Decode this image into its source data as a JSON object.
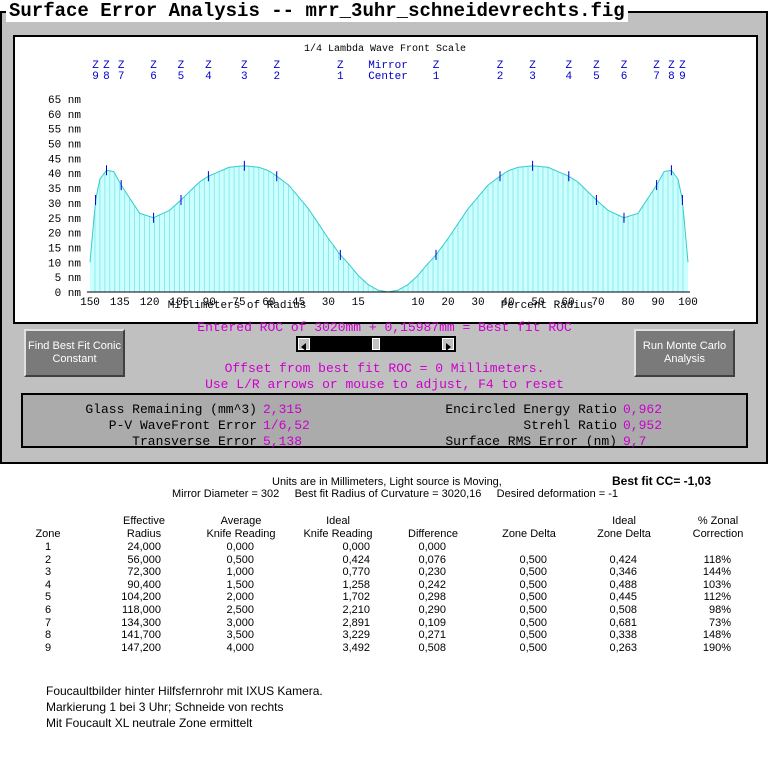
{
  "window": {
    "title": "Surface Error Analysis -- mrr_3uhr_schneidevrechts.fig"
  },
  "chart": {
    "title": "1/4 Lambda Wave Front Scale",
    "y_ticks": [
      "65 nm",
      "60 nm",
      "55 nm",
      "50 nm",
      "45 nm",
      "40 nm",
      "35 nm",
      "30 nm",
      "25 nm",
      "20 nm",
      "15 nm",
      "10 nm",
      "5 nm",
      "0 nm"
    ],
    "left_ticks": [
      "150",
      "135",
      "120",
      "105",
      "90",
      "75",
      "60",
      "45",
      "30",
      "15"
    ],
    "right_ticks": [
      "10",
      "20",
      "30",
      "40",
      "50",
      "60",
      "70",
      "80",
      "90",
      "100"
    ],
    "left_axis_label": "Millimeters of Radius",
    "right_axis_label": "Percent Radius",
    "mirror_center_line1": "Mirror",
    "mirror_center_line2": "Center",
    "zone_markers_left": [
      {
        "top": "Z",
        "bottom": "9"
      },
      {
        "top": "Z",
        "bottom": "8"
      },
      {
        "top": "Z",
        "bottom": "7"
      },
      {
        "top": "Z",
        "bottom": "6"
      },
      {
        "top": "Z",
        "bottom": "5"
      },
      {
        "top": "Z",
        "bottom": "4"
      },
      {
        "top": "Z",
        "bottom": "3"
      },
      {
        "top": "Z",
        "bottom": "2"
      },
      {
        "top": "Z",
        "bottom": "1"
      }
    ],
    "zone_markers_right": [
      {
        "top": "Z",
        "bottom": "1"
      },
      {
        "top": "Z",
        "bottom": "2"
      },
      {
        "top": "Z",
        "bottom": "3"
      },
      {
        "top": "Z",
        "bottom": "4"
      },
      {
        "top": "Z",
        "bottom": "5"
      },
      {
        "top": "Z",
        "bottom": "6"
      },
      {
        "top": "Z",
        "bottom": "7"
      },
      {
        "top": "Z",
        "bottom": "8"
      },
      {
        "top": "Z",
        "bottom": "9"
      }
    ],
    "colors": {
      "fill": "#ccffff",
      "line": "#33cccc",
      "grid": "#66dddd",
      "zone": "#0000cc",
      "ticks": "#000000"
    }
  },
  "chart_data": {
    "type": "area",
    "title": "1/4 Lambda Wave Front Scale",
    "xlabel": "Millimeters of Radius",
    "ylabel": "",
    "ylim": [
      0,
      65
    ],
    "x": [
      0,
      5,
      10,
      15,
      20,
      24,
      30,
      40,
      50,
      56,
      60,
      65,
      72.3,
      80,
      90.4,
      95,
      104.2,
      110,
      118,
      125,
      134.3,
      138,
      141.7,
      145,
      147.2,
      150
    ],
    "values": [
      0,
      0.6,
      2.5,
      5.6,
      9.6,
      12.5,
      18,
      28,
      36,
      39,
      40.8,
      42,
      42.5,
      42,
      39,
      37,
      31,
      27.5,
      25,
      26.5,
      36,
      40.5,
      41,
      38,
      31,
      10
    ],
    "series": [
      {
        "values": [
          0,
          0.6,
          2.5,
          5.6,
          9.6,
          12.5,
          18,
          28,
          36,
          39,
          40.8,
          42,
          42.5,
          42,
          39,
          37,
          31,
          27.5,
          25,
          26.5,
          36,
          40.5,
          41,
          38,
          31,
          10
        ]
      }
    ],
    "zone_radii_mm": [
      24.0,
      56.0,
      72.3,
      90.4,
      104.2,
      118.0,
      134.3,
      141.7,
      147.2
    ],
    "grid": true
  },
  "roc": {
    "line1": "Entered ROC of 3020mm + 0,15987mm = Best fit ROC",
    "line2": "Offset from best fit ROC = 0 Millimeters.",
    "line3": "Use L/R arrows or mouse to adjust, F4 to reset",
    "slider_position": 0.5
  },
  "buttons": {
    "best_fit": "Find Best Fit Conic Constant",
    "monte_carlo": "Run Monte Carlo Analysis"
  },
  "stats": {
    "glass_label": "Glass Remaining (mm^3)",
    "glass_value": "2,315",
    "pv_label": "P-V WaveFront Error",
    "pv_value": "1/6,52",
    "transverse_label": "Transverse Error",
    "transverse_value": "5,138",
    "encircled_label": "Encircled Energy Ratio",
    "encircled_value": "0,962",
    "strehl_label": "Strehl Ratio",
    "strehl_value": "0,952",
    "rms_label": "Surface RMS Error (nm)",
    "rms_value": "9,7"
  },
  "report": {
    "units_line": "Units are in Millimeters, Light source is Moving,",
    "best_fit_cc": "Best fit CC= -1,03",
    "params_line": "Mirror Diameter = 302     Best fit Radius of Curvature = 3020,16     Desired deformation = -1",
    "headers": {
      "zone": "Zone",
      "eff1": "Effective",
      "eff2": "Radius",
      "avg1": "Average",
      "avg2": "Knife Reading",
      "ideal1": "Ideal",
      "ideal2": "Knife Reading",
      "diff": "Difference",
      "zdelta": "Zone Delta",
      "izd1": "Ideal",
      "izd2": "Zone Delta",
      "corr1": "% Zonal",
      "corr2": "Correction"
    },
    "rows": [
      [
        "1",
        "24,000",
        "0,000",
        "0,000",
        "0,000",
        "",
        "",
        ""
      ],
      [
        "2",
        "56,000",
        "0,500",
        "0,424",
        "0,076",
        "0,500",
        "0,424",
        "118%"
      ],
      [
        "3",
        "72,300",
        "1,000",
        "0,770",
        "0,230",
        "0,500",
        "0,346",
        "144%"
      ],
      [
        "4",
        "90,400",
        "1,500",
        "1,258",
        "0,242",
        "0,500",
        "0,488",
        "103%"
      ],
      [
        "5",
        "104,200",
        "2,000",
        "1,702",
        "0,298",
        "0,500",
        "0,445",
        "112%"
      ],
      [
        "6",
        "118,000",
        "2,500",
        "2,210",
        "0,290",
        "0,500",
        "0,508",
        "98%"
      ],
      [
        "7",
        "134,300",
        "3,000",
        "2,891",
        "0,109",
        "0,500",
        "0,681",
        "73%"
      ],
      [
        "8",
        "141,700",
        "3,500",
        "3,229",
        "0,271",
        "0,500",
        "0,338",
        "148%"
      ],
      [
        "9",
        "147,200",
        "4,000",
        "3,492",
        "0,508",
        "0,500",
        "0,263",
        "190%"
      ]
    ],
    "notes": [
      "Foucaultbilder hinter Hilfsfernrohr mit IXUS Kamera.",
      "Markierung 1 bei 3 Uhr; Schneide von rechts",
      "Mit Foucault XL neutrale Zone ermittelt"
    ]
  }
}
